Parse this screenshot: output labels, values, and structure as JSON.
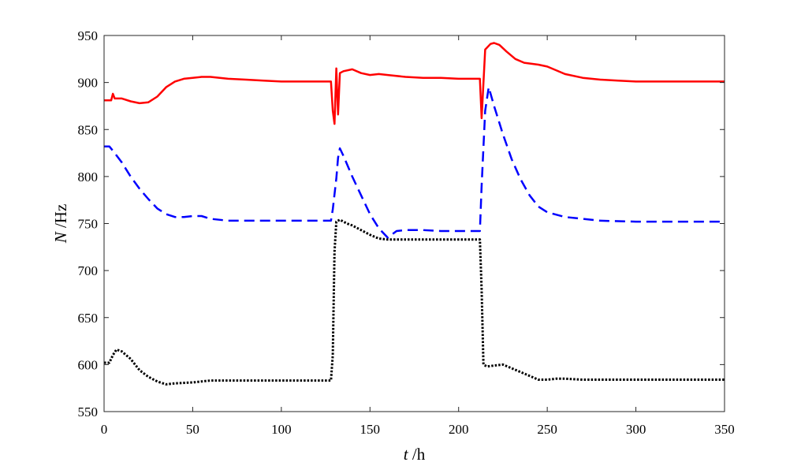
{
  "chart_data": {
    "type": "line",
    "xlabel": {
      "var": "t",
      "unit": " /h"
    },
    "ylabel": {
      "var": "N",
      "unit": " /Hz"
    },
    "xlim": [
      0,
      350
    ],
    "ylim": [
      550,
      950
    ],
    "xticks": [
      0,
      50,
      100,
      150,
      200,
      250,
      300,
      350
    ],
    "yticks": [
      550,
      600,
      650,
      700,
      750,
      800,
      850,
      900,
      950
    ],
    "grid": false,
    "legend": "none",
    "series": [
      {
        "color": "#ff0000",
        "style": "solid",
        "points": [
          [
            0,
            881
          ],
          [
            4,
            881
          ],
          [
            5,
            888
          ],
          [
            6,
            883
          ],
          [
            10,
            883
          ],
          [
            15,
            880
          ],
          [
            20,
            878
          ],
          [
            25,
            879
          ],
          [
            30,
            885
          ],
          [
            35,
            895
          ],
          [
            40,
            901
          ],
          [
            45,
            904
          ],
          [
            50,
            905
          ],
          [
            55,
            906
          ],
          [
            60,
            906
          ],
          [
            70,
            904
          ],
          [
            80,
            903
          ],
          [
            90,
            902
          ],
          [
            100,
            901
          ],
          [
            110,
            901
          ],
          [
            120,
            901
          ],
          [
            128,
            901
          ],
          [
            129,
            870
          ],
          [
            130,
            856
          ],
          [
            131,
            915
          ],
          [
            132,
            866
          ],
          [
            133,
            910
          ],
          [
            135,
            912
          ],
          [
            140,
            914
          ],
          [
            145,
            910
          ],
          [
            150,
            908
          ],
          [
            155,
            909
          ],
          [
            160,
            908
          ],
          [
            170,
            906
          ],
          [
            180,
            905
          ],
          [
            190,
            905
          ],
          [
            200,
            904
          ],
          [
            212,
            904
          ],
          [
            213,
            862
          ],
          [
            215,
            935
          ],
          [
            218,
            941
          ],
          [
            220,
            942
          ],
          [
            223,
            940
          ],
          [
            227,
            933
          ],
          [
            232,
            925
          ],
          [
            237,
            921
          ],
          [
            245,
            919
          ],
          [
            250,
            917
          ],
          [
            255,
            913
          ],
          [
            260,
            909
          ],
          [
            270,
            905
          ],
          [
            280,
            903
          ],
          [
            290,
            902
          ],
          [
            300,
            901
          ],
          [
            320,
            901
          ],
          [
            350,
            901
          ]
        ]
      },
      {
        "color": "#0000ff",
        "style": "dashed",
        "points": [
          [
            0,
            832
          ],
          [
            3,
            832
          ],
          [
            6,
            825
          ],
          [
            10,
            815
          ],
          [
            15,
            800
          ],
          [
            20,
            787
          ],
          [
            25,
            776
          ],
          [
            30,
            766
          ],
          [
            35,
            760
          ],
          [
            40,
            757
          ],
          [
            45,
            757
          ],
          [
            50,
            758
          ],
          [
            55,
            758
          ],
          [
            60,
            755
          ],
          [
            70,
            753
          ],
          [
            80,
            753
          ],
          [
            100,
            753
          ],
          [
            120,
            753
          ],
          [
            128,
            753
          ],
          [
            129,
            765
          ],
          [
            131,
            798
          ],
          [
            132,
            820
          ],
          [
            133,
            830
          ],
          [
            135,
            822
          ],
          [
            140,
            800
          ],
          [
            145,
            780
          ],
          [
            150,
            760
          ],
          [
            155,
            745
          ],
          [
            160,
            735
          ],
          [
            165,
            742
          ],
          [
            170,
            743
          ],
          [
            180,
            743
          ],
          [
            190,
            742
          ],
          [
            200,
            742
          ],
          [
            212,
            742
          ],
          [
            213,
            790
          ],
          [
            215,
            870
          ],
          [
            217,
            895
          ],
          [
            220,
            875
          ],
          [
            225,
            845
          ],
          [
            230,
            818
          ],
          [
            235,
            797
          ],
          [
            240,
            780
          ],
          [
            245,
            768
          ],
          [
            250,
            762
          ],
          [
            260,
            757
          ],
          [
            270,
            755
          ],
          [
            280,
            753
          ],
          [
            300,
            752
          ],
          [
            320,
            752
          ],
          [
            350,
            752
          ]
        ]
      },
      {
        "color": "#000000",
        "style": "dotted",
        "points": [
          [
            0,
            602
          ],
          [
            3,
            602
          ],
          [
            5,
            610
          ],
          [
            7,
            616
          ],
          [
            10,
            614
          ],
          [
            15,
            606
          ],
          [
            20,
            594
          ],
          [
            25,
            587
          ],
          [
            30,
            582
          ],
          [
            35,
            579
          ],
          [
            40,
            580
          ],
          [
            50,
            581
          ],
          [
            60,
            583
          ],
          [
            70,
            583
          ],
          [
            80,
            583
          ],
          [
            100,
            583
          ],
          [
            120,
            583
          ],
          [
            128,
            583
          ],
          [
            129,
            610
          ],
          [
            130,
            720
          ],
          [
            131,
            752
          ],
          [
            133,
            754
          ],
          [
            137,
            750
          ],
          [
            140,
            748
          ],
          [
            145,
            743
          ],
          [
            150,
            738
          ],
          [
            155,
            734
          ],
          [
            160,
            733
          ],
          [
            170,
            733
          ],
          [
            180,
            733
          ],
          [
            200,
            733
          ],
          [
            212,
            733
          ],
          [
            213,
            680
          ],
          [
            214,
            600
          ],
          [
            216,
            598
          ],
          [
            220,
            599
          ],
          [
            225,
            600
          ],
          [
            230,
            596
          ],
          [
            240,
            588
          ],
          [
            245,
            584
          ],
          [
            250,
            584
          ],
          [
            255,
            585
          ],
          [
            260,
            585
          ],
          [
            270,
            584
          ],
          [
            280,
            584
          ],
          [
            300,
            584
          ],
          [
            320,
            584
          ],
          [
            350,
            584
          ]
        ]
      }
    ]
  }
}
